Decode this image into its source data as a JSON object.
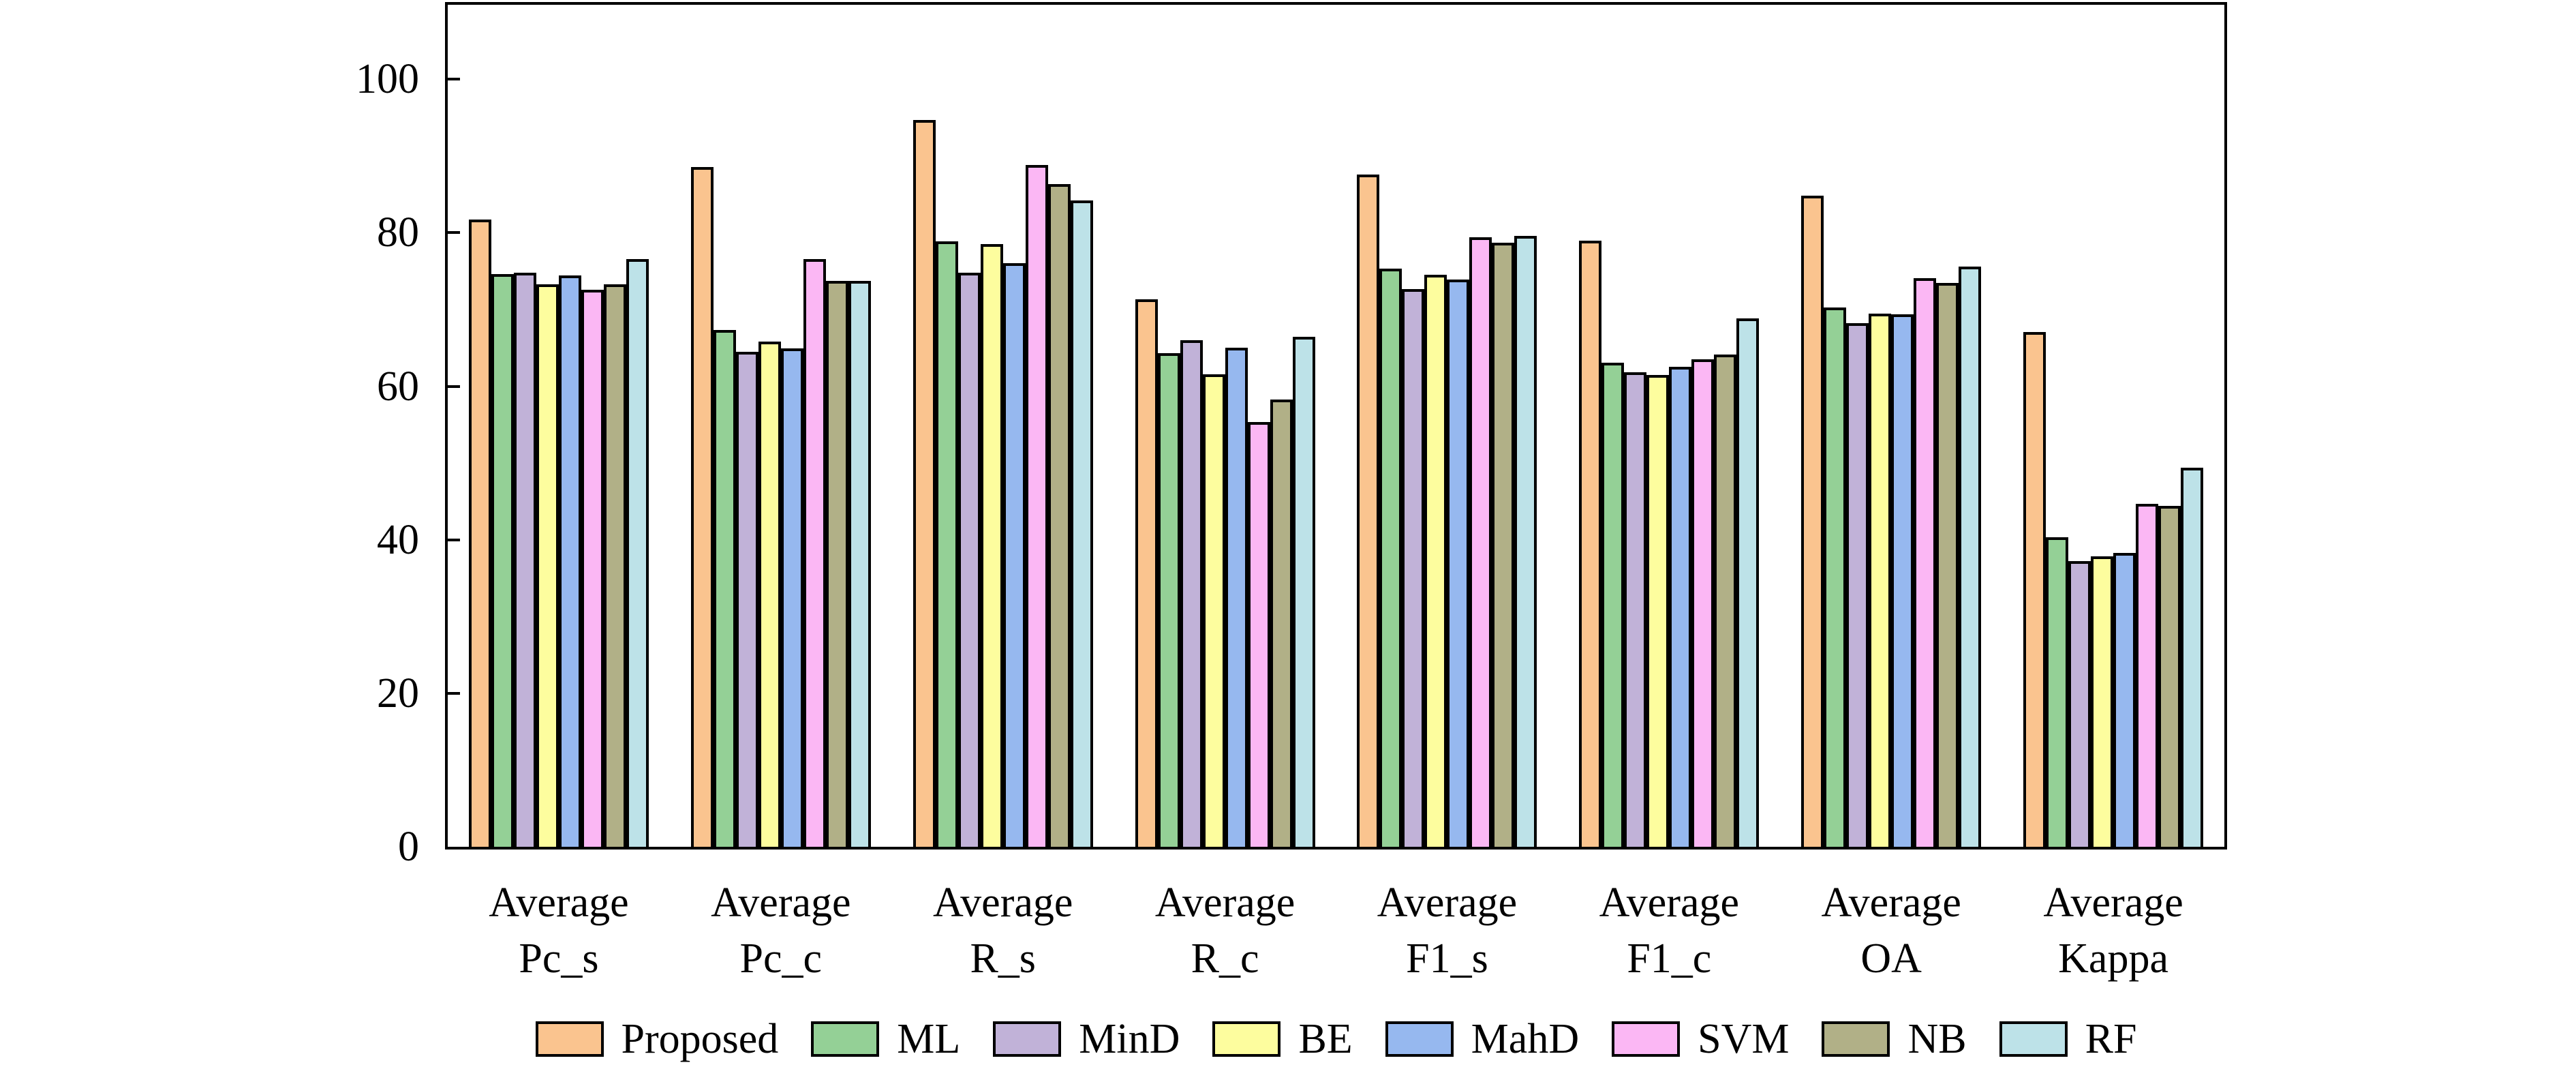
{
  "figure": {
    "background": "#ffffff",
    "axis_color": "#000000"
  },
  "chart_data": {
    "type": "bar",
    "title": "",
    "xlabel": "",
    "ylabel": "",
    "grid": false,
    "legend_position": "bottom",
    "ylim": [
      0,
      109.7
    ],
    "yticks": [
      0,
      20,
      40,
      60,
      80,
      100
    ],
    "categories": [
      "Average\nPc_s",
      "Average\nPc_c",
      "Average\nR_s",
      "Average\nR_c",
      "Average\nF1_s",
      "Average\nF1_c",
      "Average\nOA",
      "Average\nKappa"
    ],
    "series": [
      {
        "name": "Proposed",
        "color": "#FAC48F",
        "values": [
          81.7,
          88.6,
          94.7,
          71.3,
          87.6,
          79.0,
          84.8,
          67.1
        ]
      },
      {
        "name": "ML",
        "color": "#94D096",
        "values": [
          74.6,
          67.3,
          78.9,
          64.3,
          75.3,
          63.1,
          70.3,
          40.3
        ]
      },
      {
        "name": "MinD",
        "color": "#C1B2D8",
        "values": [
          74.8,
          64.5,
          74.8,
          66.0,
          72.7,
          61.8,
          68.2,
          37.2
        ]
      },
      {
        "name": "BE",
        "color": "#FDFD9E",
        "values": [
          73.3,
          65.8,
          78.5,
          61.6,
          74.5,
          61.5,
          69.5,
          37.8
        ]
      },
      {
        "name": "MahD",
        "color": "#96B8EF",
        "values": [
          74.4,
          64.9,
          76.0,
          65.0,
          73.9,
          62.5,
          69.4,
          38.3
        ]
      },
      {
        "name": "SVM",
        "color": "#FBB7F4",
        "values": [
          72.6,
          76.6,
          88.8,
          55.3,
          79.4,
          63.5,
          74.1,
          44.7
        ]
      },
      {
        "name": "NB",
        "color": "#B1B087",
        "values": [
          73.3,
          73.7,
          86.3,
          58.3,
          78.7,
          64.1,
          73.5,
          44.4
        ]
      },
      {
        "name": "RF",
        "color": "#BDE2E8",
        "values": [
          76.6,
          73.7,
          84.2,
          66.4,
          79.6,
          68.8,
          75.6,
          49.4
        ]
      }
    ]
  }
}
